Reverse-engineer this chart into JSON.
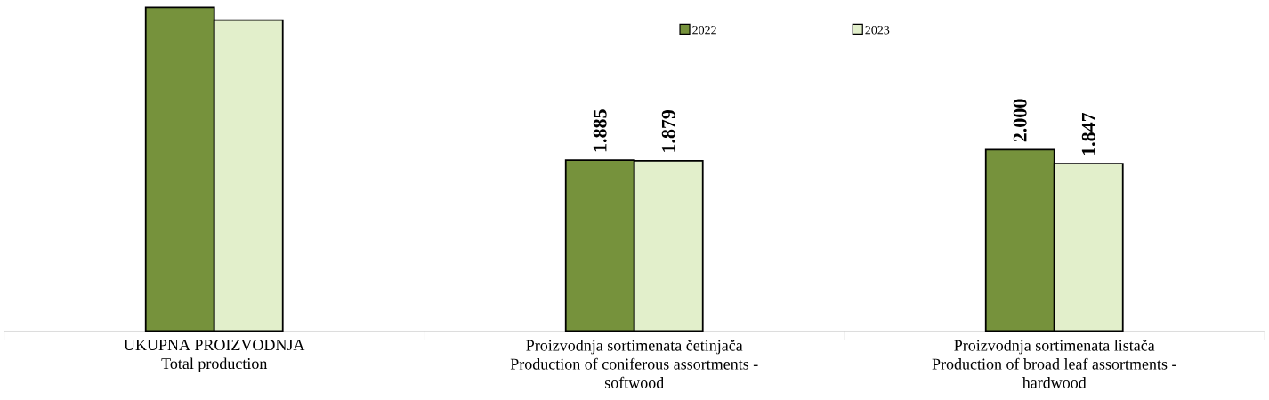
{
  "chart_data": {
    "type": "bar",
    "categories": [
      "UKUPNA PROIZVODNJA\nTotal production",
      "Proizvodnja sortimenata četinjača\nProduction of coniferous assortments -\nsoftwood",
      "Proizvodnja sortimenata listača\nProduction of broad leaf assortments -\nhardwood"
    ],
    "series": [
      {
        "name": "2022",
        "color": "#76923c",
        "values": [
          3.57,
          1.885,
          2.0
        ],
        "value_labels": [
          null,
          "1.885",
          "2.000"
        ]
      },
      {
        "name": "2023",
        "color": "#e2efcb",
        "values": [
          3.43,
          1.879,
          1.847
        ],
        "value_labels": [
          null,
          "1.879",
          "1.847"
        ]
      }
    ],
    "legend": "top"
  }
}
